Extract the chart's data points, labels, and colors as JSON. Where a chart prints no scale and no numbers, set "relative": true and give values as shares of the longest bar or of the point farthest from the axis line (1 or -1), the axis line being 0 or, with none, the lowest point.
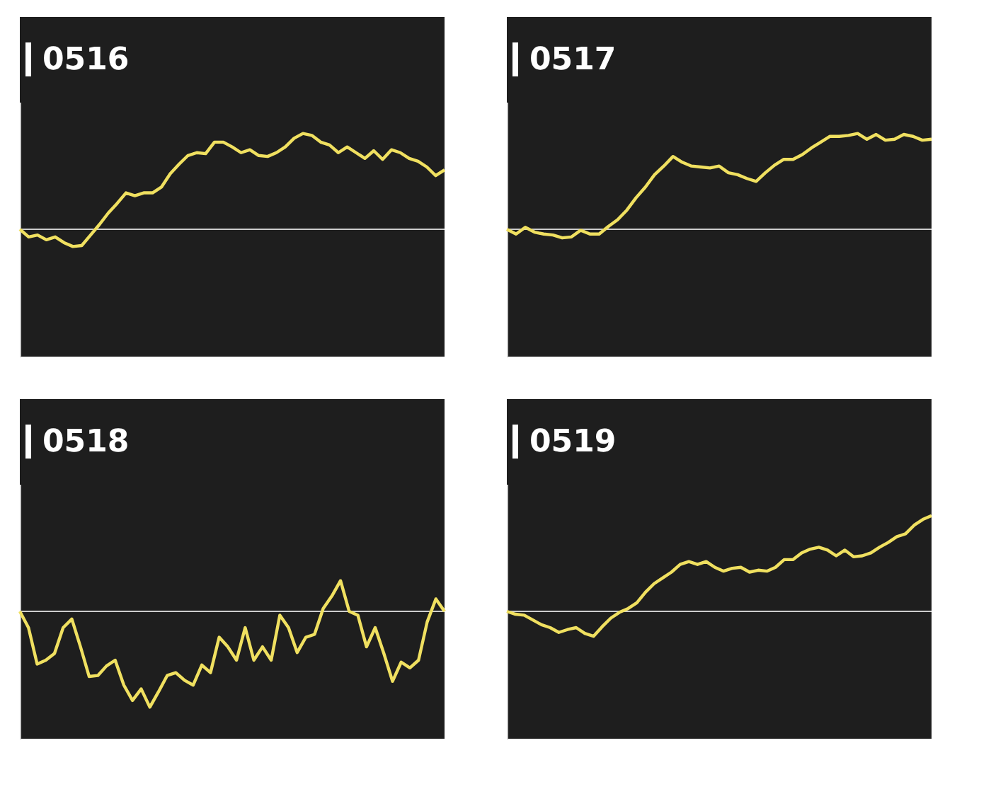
{
  "chart_data": [
    {
      "type": "line",
      "title": "0516",
      "relative": true,
      "tick_labels": false,
      "grid": false,
      "categories": [
        null,
        null,
        null,
        null,
        null,
        null,
        null,
        null,
        null,
        null,
        null,
        null,
        null,
        null,
        null,
        null,
        null,
        null,
        null,
        null,
        null,
        null,
        null,
        null,
        null,
        null,
        null,
        null,
        null,
        null,
        null,
        null,
        null,
        null,
        null,
        null,
        null,
        null,
        null,
        null,
        null,
        null,
        null,
        null,
        null,
        null,
        null,
        null,
        null
      ],
      "series": [
        {
          "color": "#f0e060",
          "values": [
            0,
            -0.08,
            -0.06,
            -0.11,
            -0.08,
            -0.14,
            -0.18,
            -0.17,
            -0.06,
            0.05,
            0.17,
            0.27,
            0.38,
            0.35,
            0.38,
            0.38,
            0.44,
            0.58,
            0.68,
            0.77,
            0.8,
            0.79,
            0.91,
            0.91,
            0.86,
            0.8,
            0.83,
            0.77,
            0.76,
            0.8,
            0.86,
            0.95,
            1,
            0.98,
            0.91,
            0.88,
            0.8,
            0.86,
            0.8,
            0.74,
            0.82,
            0.73,
            0.83,
            0.8,
            0.74,
            0.71,
            0.65,
            0.56,
            0.62
          ]
        }
      ]
    },
    {
      "type": "line",
      "title": "0517",
      "relative": true,
      "tick_labels": false,
      "grid": false,
      "categories": [
        null,
        null,
        null,
        null,
        null,
        null,
        null,
        null,
        null,
        null,
        null,
        null,
        null,
        null,
        null,
        null,
        null,
        null,
        null,
        null,
        null,
        null,
        null,
        null,
        null,
        null,
        null,
        null,
        null,
        null,
        null,
        null,
        null,
        null,
        null,
        null,
        null,
        null,
        null,
        null,
        null,
        null,
        null,
        null,
        null,
        null,
        null
      ],
      "series": [
        {
          "color": "#f0e060",
          "values": [
            0,
            -0.05,
            0.02,
            -0.03,
            -0.05,
            -0.06,
            -0.09,
            -0.08,
            -0.01,
            -0.05,
            -0.05,
            0.03,
            0.1,
            0.2,
            0.33,
            0.44,
            0.57,
            0.66,
            0.76,
            0.7,
            0.66,
            0.65,
            0.64,
            0.66,
            0.59,
            0.57,
            0.53,
            0.5,
            0.59,
            0.67,
            0.73,
            0.73,
            0.78,
            0.85,
            0.91,
            0.97,
            0.97,
            0.98,
            1,
            0.94,
            0.99,
            0.93,
            0.94,
            0.99,
            0.97,
            0.93,
            0.94
          ]
        }
      ]
    },
    {
      "type": "line",
      "title": "0518",
      "relative": true,
      "tick_labels": false,
      "grid": false,
      "categories": [
        null,
        null,
        null,
        null,
        null,
        null,
        null,
        null,
        null,
        null,
        null,
        null,
        null,
        null,
        null,
        null,
        null,
        null,
        null,
        null,
        null,
        null,
        null,
        null,
        null,
        null,
        null,
        null,
        null,
        null,
        null,
        null,
        null,
        null,
        null,
        null,
        null,
        null,
        null,
        null,
        null,
        null,
        null,
        null,
        null,
        null,
        null,
        null,
        null,
        null
      ],
      "series": [
        {
          "color": "#f0e060",
          "values": [
            0,
            -0.17,
            -0.55,
            -0.51,
            -0.44,
            -0.17,
            -0.08,
            -0.37,
            -0.68,
            -0.67,
            -0.57,
            -0.51,
            -0.77,
            -0.93,
            -0.81,
            -1,
            -0.84,
            -0.67,
            -0.64,
            -0.72,
            -0.77,
            -0.56,
            -0.64,
            -0.27,
            -0.37,
            -0.51,
            -0.17,
            -0.51,
            -0.37,
            -0.51,
            -0.04,
            -0.17,
            -0.43,
            -0.27,
            -0.24,
            0.03,
            0.16,
            0.32,
            0,
            -0.04,
            -0.37,
            -0.17,
            -0.44,
            -0.73,
            -0.53,
            -0.59,
            -0.51,
            -0.11,
            0.13,
            0
          ]
        }
      ]
    },
    {
      "type": "line",
      "title": "0519",
      "relative": true,
      "tick_labels": false,
      "grid": false,
      "categories": [
        null,
        null,
        null,
        null,
        null,
        null,
        null,
        null,
        null,
        null,
        null,
        null,
        null,
        null,
        null,
        null,
        null,
        null,
        null,
        null,
        null,
        null,
        null,
        null,
        null,
        null,
        null,
        null,
        null,
        null,
        null,
        null,
        null,
        null,
        null,
        null,
        null,
        null,
        null,
        null,
        null,
        null,
        null,
        null,
        null,
        null,
        null,
        null,
        null,
        null
      ],
      "series": [
        {
          "color": "#f0e060",
          "values": [
            0,
            -0.03,
            -0.04,
            -0.09,
            -0.14,
            -0.17,
            -0.22,
            -0.19,
            -0.17,
            -0.23,
            -0.26,
            -0.16,
            -0.07,
            -0.01,
            0.03,
            0.09,
            0.2,
            0.29,
            0.35,
            0.41,
            0.49,
            0.52,
            0.49,
            0.52,
            0.46,
            0.42,
            0.45,
            0.46,
            0.41,
            0.43,
            0.42,
            0.46,
            0.54,
            0.54,
            0.61,
            0.65,
            0.67,
            0.64,
            0.58,
            0.64,
            0.57,
            0.58,
            0.61,
            0.67,
            0.72,
            0.78,
            0.81,
            0.9,
            0.96,
            1
          ]
        }
      ]
    }
  ]
}
